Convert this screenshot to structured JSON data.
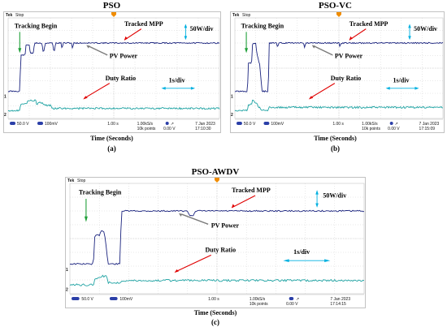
{
  "panels": [
    {
      "id": "a",
      "title": "PSO",
      "x_caption": "Time (Seconds)",
      "sublabel": "(a)",
      "scope": {
        "brand": "Tek",
        "state": "Stop",
        "ch1_scale": "50.0 V",
        "ch2_scale": "100mV",
        "timebase": "1.00 s",
        "sample_rate": "1.00kS/s",
        "record": "10k points",
        "ch1_marker": "1",
        "ch2_marker": "2",
        "trigger_level": "0.00 V",
        "date": "7 Jan 2023",
        "time": "17:10:30"
      },
      "annotations": {
        "tracking_begin": "Tracking Begin",
        "tracked_mpp": "Tracked MPP",
        "pv_power": "PV Power",
        "duty_ratio": "Duty Ratio",
        "power_scale": "50W/div",
        "time_scale": "1s/div"
      }
    },
    {
      "id": "b",
      "title": "PSO-VC",
      "x_caption": "Time (Seconds)",
      "sublabel": "(b)",
      "scope": {
        "brand": "Tek",
        "state": "Stop",
        "ch1_scale": "50.0 V",
        "ch2_scale": "100mV",
        "timebase": "1.00 s",
        "sample_rate": "1.00kS/s",
        "record": "10k points",
        "ch1_marker": "1",
        "ch2_marker": "2",
        "trigger_level": "0.00 V",
        "date": "7 Jan 2023",
        "time": "17:15:09"
      },
      "annotations": {
        "tracking_begin": "Tracking Begin",
        "tracked_mpp": "Tracked MPP",
        "pv_power": "PV Power",
        "duty_ratio": "Duty Ratio",
        "power_scale": "50W/div",
        "time_scale": "1s/div"
      }
    },
    {
      "id": "c",
      "title": "PSO-AWDV",
      "x_caption": "Time (Seconds)",
      "sublabel": "(c)",
      "scope": {
        "brand": "Tek",
        "state": "Stop",
        "ch1_scale": "50.0 V",
        "ch2_scale": "100mV",
        "timebase": "1.00 s",
        "sample_rate": "1.00kS/s",
        "record": "10k points",
        "ch1_marker": "1",
        "ch2_marker": "2",
        "trigger_level": "0.00 V",
        "date": "7 Jan 2023",
        "time": "17:14:15"
      },
      "annotations": {
        "tracking_begin": "Tracking Begin",
        "tracked_mpp": "Tracked MPP",
        "pv_power": "PV Power",
        "duty_ratio": "Duty Ratio",
        "power_scale": "50W/div",
        "time_scale": "1s/div"
      }
    }
  ],
  "colors": {
    "ch1_trace": "#1a237e",
    "ch2_trace": "#1fa3a3",
    "arrow_green": "#21a03a",
    "arrow_red": "#e00000",
    "arrow_gray": "#7a7a7a",
    "scale_arrow": "#00b0e0",
    "grid": "#c8c8c8",
    "ch1_marker": "#1a237e",
    "ch2_marker": "#1fa3a3",
    "trigger_marker": "#f08c00",
    "status_badge": "#2b3fa8"
  },
  "icons": {
    "trigger": "trigger-position-marker-icon",
    "cursor": "trigger-cursor-icon"
  }
}
